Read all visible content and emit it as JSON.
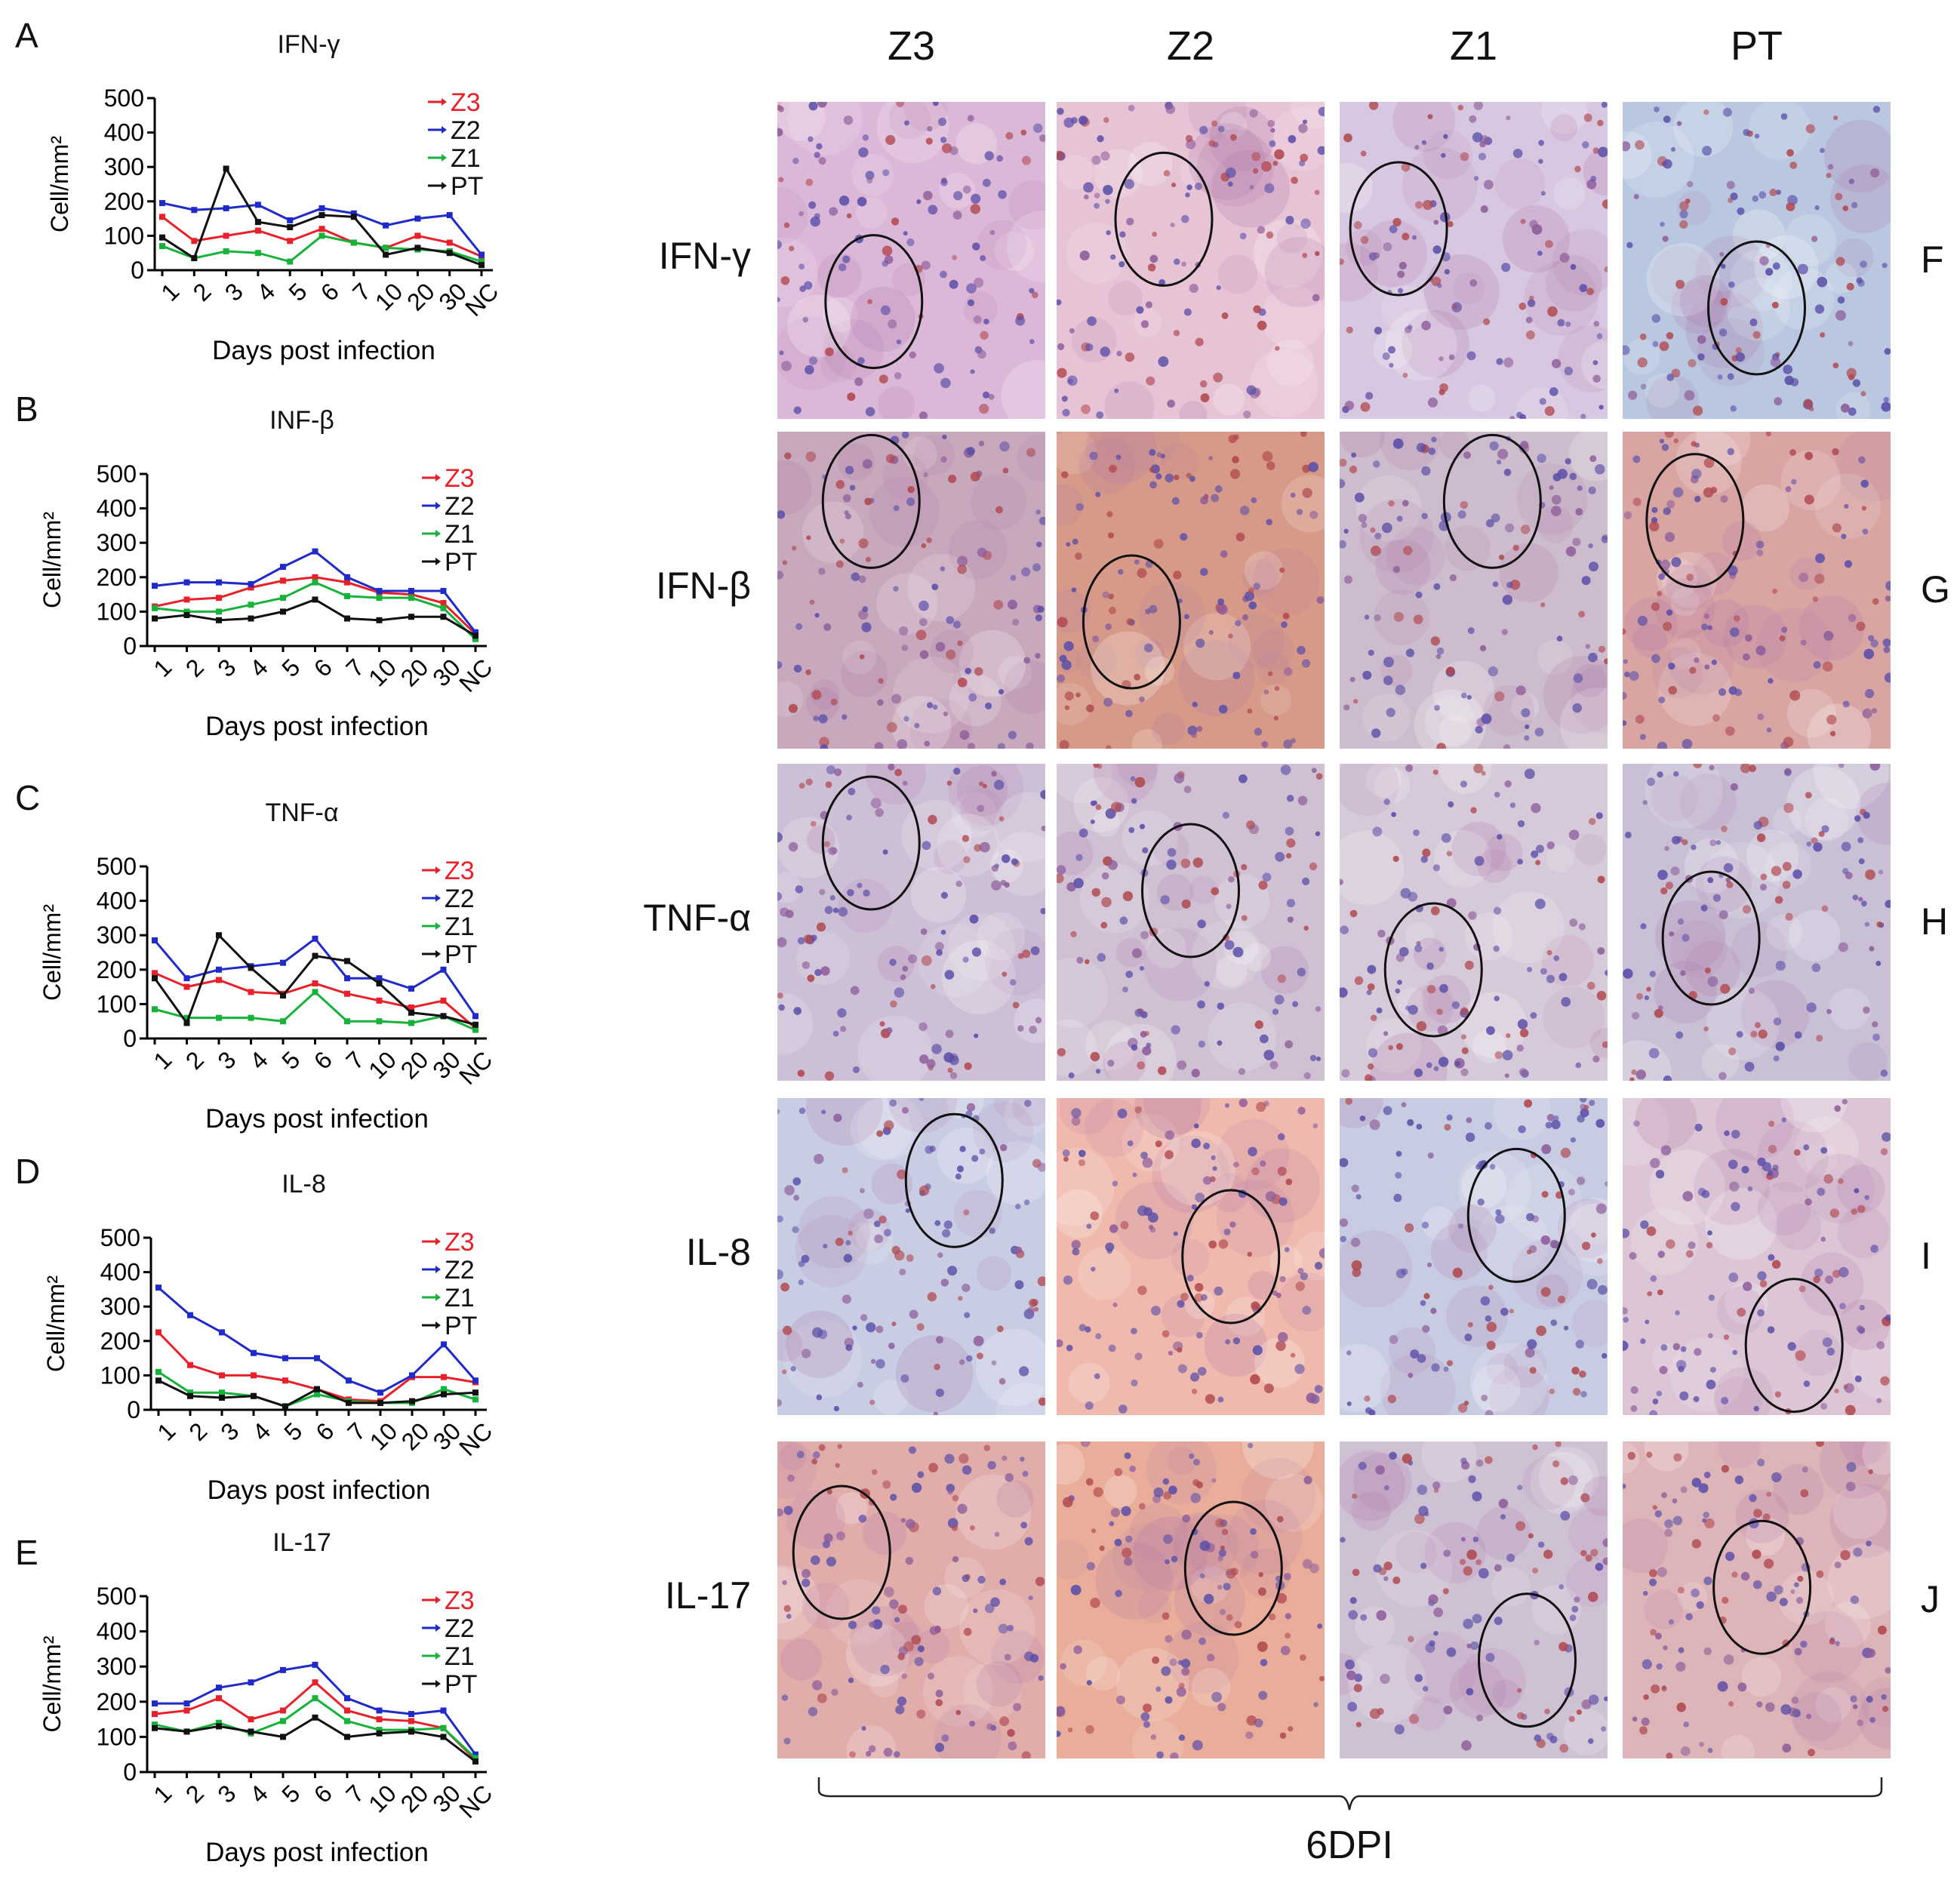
{
  "colors": {
    "Z3": "#e8202a",
    "Z2": "#1f2ac8",
    "Z1": "#16b23a",
    "PT": "#111111"
  },
  "chart_data": [
    {
      "panel": "A",
      "type": "line",
      "title": "IFN-γ",
      "xlabel": "Days post infection",
      "ylabel": "Cell/mm²",
      "categories": [
        "1",
        "2",
        "3",
        "4",
        "5",
        "6",
        "7",
        "10",
        "20",
        "30",
        "NC"
      ],
      "ylim": [
        0,
        500
      ],
      "yticks": [
        "0",
        "100",
        "200",
        "300",
        "400",
        "500"
      ],
      "series": [
        {
          "name": "Z3",
          "values": [
            155,
            85,
            100,
            115,
            85,
            120,
            80,
            65,
            100,
            80,
            40
          ]
        },
        {
          "name": "Z2",
          "values": [
            195,
            175,
            180,
            190,
            145,
            180,
            165,
            130,
            150,
            160,
            45
          ]
        },
        {
          "name": "Z1",
          "values": [
            70,
            35,
            55,
            50,
            25,
            100,
            80,
            65,
            60,
            55,
            25
          ]
        },
        {
          "name": "PT",
          "values": [
            95,
            35,
            295,
            140,
            125,
            160,
            155,
            45,
            65,
            50,
            15
          ]
        }
      ]
    },
    {
      "panel": "B",
      "type": "line",
      "title": "INF-β",
      "xlabel": "Days post infection",
      "ylabel": "Cell/mm²",
      "categories": [
        "1",
        "2",
        "3",
        "4",
        "5",
        "6",
        "7",
        "10",
        "20",
        "30",
        "NC"
      ],
      "ylim": [
        0,
        500
      ],
      "yticks": [
        "0",
        "100",
        "200",
        "300",
        "400",
        "500"
      ],
      "series": [
        {
          "name": "Z3",
          "values": [
            115,
            135,
            140,
            170,
            190,
            200,
            185,
            155,
            150,
            125,
            35
          ]
        },
        {
          "name": "Z2",
          "values": [
            175,
            185,
            185,
            180,
            230,
            275,
            200,
            160,
            160,
            160,
            40
          ]
        },
        {
          "name": "Z1",
          "values": [
            110,
            100,
            100,
            120,
            140,
            185,
            145,
            140,
            140,
            110,
            20
          ]
        },
        {
          "name": "PT",
          "values": [
            80,
            90,
            75,
            80,
            100,
            135,
            80,
            75,
            85,
            85,
            30
          ]
        }
      ]
    },
    {
      "panel": "C",
      "type": "line",
      "title": "TNF-α",
      "xlabel": "Days post infection",
      "ylabel": "Cell/mm²",
      "categories": [
        "1",
        "2",
        "3",
        "4",
        "5",
        "6",
        "7",
        "10",
        "20",
        "30",
        "NC"
      ],
      "ylim": [
        0,
        500
      ],
      "yticks": [
        "0",
        "100",
        "200",
        "300",
        "400",
        "500"
      ],
      "series": [
        {
          "name": "Z3",
          "values": [
            190,
            150,
            170,
            135,
            130,
            160,
            130,
            110,
            90,
            110,
            30
          ]
        },
        {
          "name": "Z2",
          "values": [
            285,
            175,
            200,
            210,
            220,
            290,
            175,
            175,
            145,
            200,
            65
          ]
        },
        {
          "name": "Z1",
          "values": [
            85,
            60,
            60,
            60,
            50,
            135,
            50,
            50,
            45,
            65,
            25
          ]
        },
        {
          "name": "PT",
          "values": [
            175,
            45,
            300,
            205,
            125,
            240,
            225,
            160,
            75,
            65,
            40
          ]
        }
      ]
    },
    {
      "panel": "D",
      "type": "line",
      "title": "IL-8",
      "xlabel": "Days post infection",
      "ylabel": "Cell/mm²",
      "categories": [
        "1",
        "2",
        "3",
        "4",
        "5",
        "6",
        "7",
        "10",
        "20",
        "30",
        "NC"
      ],
      "ylim": [
        0,
        500
      ],
      "yticks": [
        "0",
        "100",
        "200",
        "300",
        "400",
        "500"
      ],
      "series": [
        {
          "name": "Z3",
          "values": [
            225,
            130,
            100,
            100,
            85,
            60,
            30,
            25,
            95,
            95,
            80
          ]
        },
        {
          "name": "Z2",
          "values": [
            355,
            275,
            225,
            165,
            150,
            150,
            85,
            50,
            100,
            190,
            85
          ]
        },
        {
          "name": "Z1",
          "values": [
            110,
            50,
            50,
            40,
            10,
            45,
            25,
            20,
            20,
            60,
            30
          ]
        },
        {
          "name": "PT",
          "values": [
            85,
            40,
            35,
            40,
            10,
            60,
            20,
            20,
            25,
            45,
            50
          ]
        }
      ]
    },
    {
      "panel": "E",
      "type": "line",
      "title": "IL-17",
      "xlabel": "Days post infection",
      "ylabel": "Cell/mm²",
      "categories": [
        "1",
        "2",
        "3",
        "4",
        "5",
        "6",
        "7",
        "10",
        "20",
        "30",
        "NC"
      ],
      "ylim": [
        0,
        500
      ],
      "yticks": [
        "0",
        "100",
        "200",
        "300",
        "400",
        "500"
      ],
      "series": [
        {
          "name": "Z3",
          "values": [
            165,
            175,
            210,
            150,
            175,
            255,
            175,
            150,
            145,
            125,
            35
          ]
        },
        {
          "name": "Z2",
          "values": [
            195,
            195,
            240,
            255,
            290,
            305,
            210,
            175,
            165,
            175,
            50
          ]
        },
        {
          "name": "Z1",
          "values": [
            135,
            115,
            140,
            110,
            145,
            210,
            145,
            120,
            120,
            125,
            40
          ]
        },
        {
          "name": "PT",
          "values": [
            125,
            115,
            130,
            115,
            100,
            155,
            100,
            110,
            115,
            100,
            30
          ]
        }
      ]
    }
  ],
  "micrographs": {
    "columns": [
      "Z3",
      "Z2",
      "Z1",
      "PT"
    ],
    "rows": [
      {
        "label": "IFN-γ",
        "panel": "F"
      },
      {
        "label": "IFN-β",
        "panel": "G"
      },
      {
        "label": "TNF-α",
        "panel": "H"
      },
      {
        "label": "IL-8",
        "panel": "I"
      },
      {
        "label": "IL-17",
        "panel": "J"
      }
    ],
    "bracket_label": "6DPI"
  }
}
